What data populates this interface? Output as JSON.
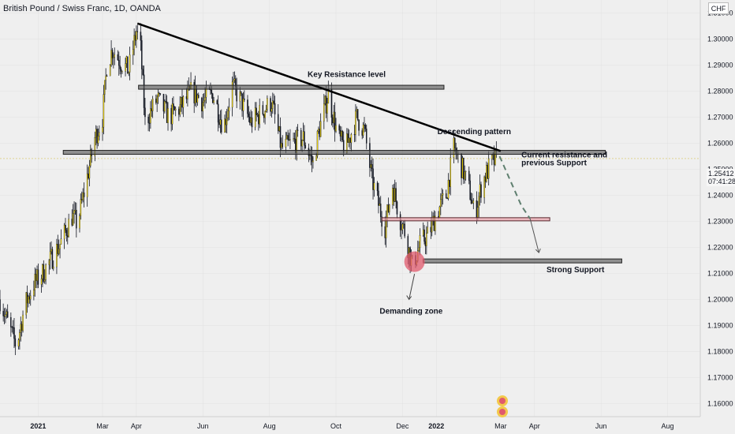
{
  "header": {
    "title": "British Pound / Swiss Franc, 1D, OANDA",
    "currency": "CHF"
  },
  "price_tag": {
    "value": "1.25412",
    "countdown": "07:41:28"
  },
  "colors": {
    "up": "#f5d90a",
    "down": "#131722",
    "accent_red": "#e05a6c",
    "dash_green": "#5f7f6f",
    "line": "#000000",
    "grid": "#d8d8d8"
  },
  "chart_data": {
    "type": "candlestick",
    "ylim": [
      1.155,
      1.315
    ],
    "yticks": [
      "1.31000",
      "1.30000",
      "1.29000",
      "1.28000",
      "1.27000",
      "1.26000",
      "1.25000",
      "1.24000",
      "1.23000",
      "1.22000",
      "1.21000",
      "1.20000",
      "1.19000",
      "1.18000",
      "1.17000",
      "1.16000"
    ],
    "ytick_values": [
      1.31,
      1.3,
      1.29,
      1.28,
      1.27,
      1.26,
      1.25,
      1.24,
      1.23,
      1.22,
      1.21,
      1.2,
      1.19,
      1.18,
      1.17,
      1.16
    ],
    "x_dates_range": [
      "2020-11-27",
      "2022-08-31"
    ],
    "xticks": [
      {
        "label": "2021",
        "date": "2021-01-01",
        "bold": true
      },
      {
        "label": "Mar",
        "date": "2021-03-01"
      },
      {
        "label": "Apr",
        "date": "2021-04-01"
      },
      {
        "label": "Jun",
        "date": "2021-06-01"
      },
      {
        "label": "Aug",
        "date": "2021-08-01"
      },
      {
        "label": "Oct",
        "date": "2021-10-01"
      },
      {
        "label": "Dec",
        "date": "2021-12-01"
      },
      {
        "label": "2022",
        "date": "2022-01-01",
        "bold": true
      },
      {
        "label": "Mar",
        "date": "2022-03-01"
      },
      {
        "label": "Apr",
        "date": "2022-04-01"
      },
      {
        "label": "Jun",
        "date": "2022-06-01"
      },
      {
        "label": "Aug",
        "date": "2022-08-01"
      }
    ],
    "price_path": [
      [
        "2020-11-27",
        1.2
      ],
      [
        "2020-12-05",
        1.19
      ],
      [
        "2020-12-12",
        1.182
      ],
      [
        "2020-12-20",
        1.198
      ],
      [
        "2020-12-28",
        1.206
      ],
      [
        "2021-01-05",
        1.21
      ],
      [
        "2021-01-15",
        1.217
      ],
      [
        "2021-01-22",
        1.222
      ],
      [
        "2021-02-01",
        1.232
      ],
      [
        "2021-02-06",
        1.229
      ],
      [
        "2021-02-14",
        1.245
      ],
      [
        "2021-02-22",
        1.262
      ],
      [
        "2021-03-01",
        1.27
      ],
      [
        "2021-03-05",
        1.29
      ],
      [
        "2021-03-10",
        1.296
      ],
      [
        "2021-03-18",
        1.291
      ],
      [
        "2021-03-25",
        1.288
      ],
      [
        "2021-04-01",
        1.303
      ],
      [
        "2021-04-05",
        1.296
      ],
      [
        "2021-04-09",
        1.268
      ],
      [
        "2021-04-20",
        1.277
      ],
      [
        "2021-05-01",
        1.27
      ],
      [
        "2021-05-12",
        1.274
      ],
      [
        "2021-05-22",
        1.28
      ],
      [
        "2021-06-01",
        1.276
      ],
      [
        "2021-06-10",
        1.279
      ],
      [
        "2021-06-20",
        1.266
      ],
      [
        "2021-06-28",
        1.282
      ],
      [
        "2021-07-05",
        1.277
      ],
      [
        "2021-07-15",
        1.268
      ],
      [
        "2021-07-25",
        1.272
      ],
      [
        "2021-08-03",
        1.276
      ],
      [
        "2021-08-12",
        1.258
      ],
      [
        "2021-08-22",
        1.26
      ],
      [
        "2021-09-01",
        1.262
      ],
      [
        "2021-09-10",
        1.252
      ],
      [
        "2021-09-15",
        1.264
      ],
      [
        "2021-09-24",
        1.279
      ],
      [
        "2021-10-03",
        1.262
      ],
      [
        "2021-10-10",
        1.258
      ],
      [
        "2021-10-20",
        1.27
      ],
      [
        "2021-10-27",
        1.265
      ],
      [
        "2021-11-03",
        1.246
      ],
      [
        "2021-11-10",
        1.235
      ],
      [
        "2021-11-15",
        1.228
      ],
      [
        "2021-11-22",
        1.244
      ],
      [
        "2021-11-28",
        1.232
      ],
      [
        "2021-12-03",
        1.226
      ],
      [
        "2021-12-10",
        1.213
      ],
      [
        "2021-12-18",
        1.222
      ],
      [
        "2021-12-25",
        1.225
      ],
      [
        "2022-01-01",
        1.233
      ],
      [
        "2022-01-10",
        1.24
      ],
      [
        "2022-01-17",
        1.258
      ],
      [
        "2022-01-25",
        1.25
      ],
      [
        "2022-02-01",
        1.241
      ],
      [
        "2022-02-05",
        1.232
      ],
      [
        "2022-02-12",
        1.245
      ],
      [
        "2022-02-20",
        1.252
      ],
      [
        "2022-02-26",
        1.254
      ]
    ],
    "shapes": {
      "descending_line": {
        "from": [
          "2021-04-02",
          1.306
        ],
        "to": [
          "2022-03-01",
          1.257
        ]
      },
      "resistance_box": {
        "from_date": "2021-04-03",
        "to_date": "2022-01-08",
        "price": 1.2815
      },
      "mid_box": {
        "from_date": "2021-01-24",
        "to_date": "2022-06-05",
        "price": 1.2565
      },
      "red_box": {
        "from_date": "2021-11-12",
        "to_date": "2022-04-15",
        "price": 1.2308
      },
      "strong_box": {
        "from_date": "2021-12-20",
        "to_date": "2022-06-20",
        "price": 1.2148
      },
      "demand_circle": {
        "date": "2021-12-12",
        "price": 1.2145
      },
      "down_arrow": {
        "from": [
          "2021-12-12",
          1.2098
        ],
        "to": [
          "2021-12-07",
          1.2
        ]
      },
      "dashed_path": [
        [
          "2022-02-28",
          1.255
        ],
        [
          "2022-03-20",
          1.236
        ],
        [
          "2022-03-28",
          1.231
        ]
      ],
      "arrow_line": {
        "from": [
          "2022-03-28",
          1.231
        ],
        "to": [
          "2022-04-05",
          1.218
        ]
      }
    },
    "annotations": [
      {
        "text": "Key Resistance level",
        "date": "2021-09-05",
        "price": 1.2855,
        "anchor": "start"
      },
      {
        "text": "Descending pattern",
        "date": "2022-01-02",
        "price": 1.2635,
        "anchor": "start"
      },
      {
        "text": "Current resistance and",
        "date": "2022-03-20",
        "price": 1.2545,
        "anchor": "start"
      },
      {
        "text": "previous Support",
        "date": "2022-03-20",
        "price": 1.2515,
        "anchor": "start"
      },
      {
        "text": "Strong Support",
        "date": "2022-04-12",
        "price": 1.2105,
        "anchor": "start"
      },
      {
        "text": "Demanding zone",
        "date": "2021-11-10",
        "price": 1.1945,
        "anchor": "start"
      }
    ]
  }
}
